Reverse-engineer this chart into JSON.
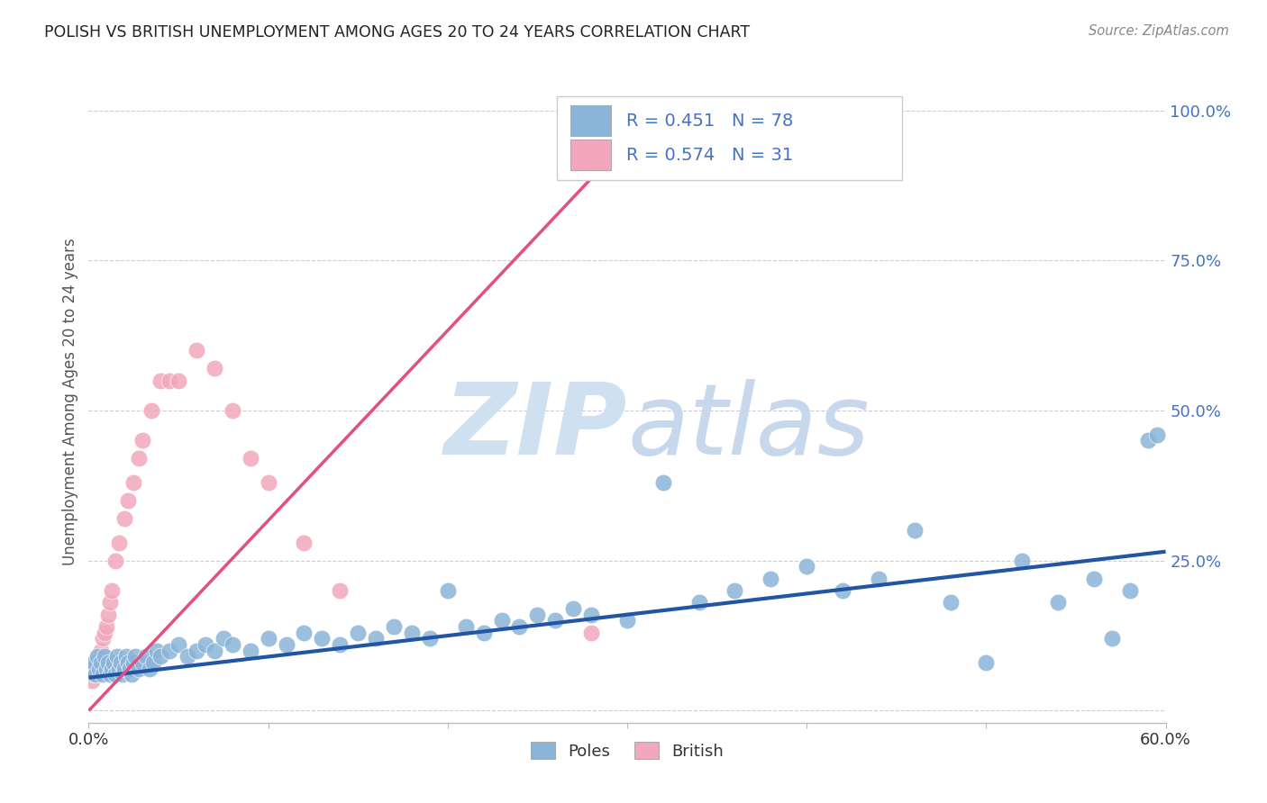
{
  "title": "POLISH VS BRITISH UNEMPLOYMENT AMONG AGES 20 TO 24 YEARS CORRELATION CHART",
  "source": "Source: ZipAtlas.com",
  "ylabel": "Unemployment Among Ages 20 to 24 years",
  "xlim": [
    0.0,
    0.6
  ],
  "ylim": [
    -0.02,
    1.05
  ],
  "poles_R": 0.451,
  "poles_N": 78,
  "british_R": 0.574,
  "british_N": 31,
  "poles_color": "#8ab4d8",
  "british_color": "#f2a7bc",
  "poles_line_color": "#2255a4",
  "british_line_color": "#e05080",
  "legend_text_color": "#4472c4",
  "watermark_zip_color": "#cfe0f0",
  "watermark_atlas_color": "#c8d8ec",
  "grid_color": "#ccccdd",
  "background_color": "#ffffff",
  "poles_x": [
    0.002,
    0.003,
    0.004,
    0.005,
    0.006,
    0.007,
    0.008,
    0.009,
    0.01,
    0.011,
    0.012,
    0.013,
    0.014,
    0.015,
    0.016,
    0.017,
    0.018,
    0.019,
    0.02,
    0.021,
    0.022,
    0.023,
    0.024,
    0.025,
    0.026,
    0.028,
    0.03,
    0.032,
    0.034,
    0.036,
    0.038,
    0.04,
    0.045,
    0.05,
    0.055,
    0.06,
    0.065,
    0.07,
    0.075,
    0.08,
    0.09,
    0.1,
    0.11,
    0.12,
    0.13,
    0.14,
    0.15,
    0.16,
    0.17,
    0.18,
    0.19,
    0.2,
    0.21,
    0.22,
    0.23,
    0.24,
    0.25,
    0.26,
    0.27,
    0.28,
    0.3,
    0.32,
    0.34,
    0.36,
    0.38,
    0.4,
    0.42,
    0.44,
    0.46,
    0.48,
    0.5,
    0.52,
    0.54,
    0.56,
    0.57,
    0.58,
    0.59,
    0.595
  ],
  "poles_y": [
    0.07,
    0.08,
    0.06,
    0.09,
    0.07,
    0.08,
    0.06,
    0.09,
    0.07,
    0.08,
    0.06,
    0.07,
    0.08,
    0.06,
    0.09,
    0.07,
    0.08,
    0.06,
    0.07,
    0.09,
    0.08,
    0.07,
    0.06,
    0.08,
    0.09,
    0.07,
    0.08,
    0.09,
    0.07,
    0.08,
    0.1,
    0.09,
    0.1,
    0.11,
    0.09,
    0.1,
    0.11,
    0.1,
    0.12,
    0.11,
    0.1,
    0.12,
    0.11,
    0.13,
    0.12,
    0.11,
    0.13,
    0.12,
    0.14,
    0.13,
    0.12,
    0.2,
    0.14,
    0.13,
    0.15,
    0.14,
    0.16,
    0.15,
    0.17,
    0.16,
    0.15,
    0.38,
    0.18,
    0.2,
    0.22,
    0.24,
    0.2,
    0.22,
    0.3,
    0.18,
    0.08,
    0.25,
    0.18,
    0.22,
    0.12,
    0.2,
    0.45,
    0.46
  ],
  "british_x": [
    0.002,
    0.003,
    0.004,
    0.005,
    0.006,
    0.007,
    0.008,
    0.009,
    0.01,
    0.011,
    0.012,
    0.013,
    0.015,
    0.017,
    0.02,
    0.022,
    0.025,
    0.028,
    0.03,
    0.035,
    0.04,
    0.045,
    0.05,
    0.06,
    0.07,
    0.08,
    0.09,
    0.1,
    0.12,
    0.14,
    0.28
  ],
  "british_y": [
    0.05,
    0.06,
    0.07,
    0.08,
    0.09,
    0.1,
    0.12,
    0.13,
    0.14,
    0.16,
    0.18,
    0.2,
    0.25,
    0.28,
    0.32,
    0.35,
    0.38,
    0.42,
    0.45,
    0.5,
    0.55,
    0.55,
    0.55,
    0.6,
    0.57,
    0.5,
    0.42,
    0.38,
    0.28,
    0.2,
    0.13
  ],
  "poles_line_x0": 0.0,
  "poles_line_y0": 0.055,
  "poles_line_x1": 0.6,
  "poles_line_y1": 0.265,
  "british_line_x0": 0.0,
  "british_line_y0": 0.0,
  "british_line_x1": 0.3,
  "british_line_y1": 0.95
}
